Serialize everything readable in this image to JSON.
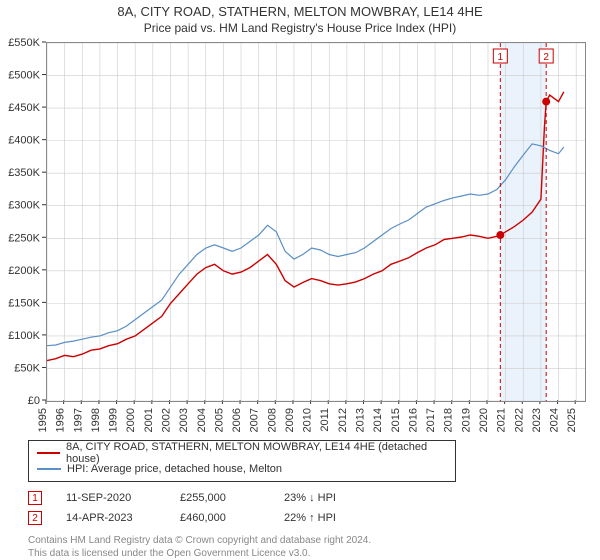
{
  "title": {
    "line1": "8A, CITY ROAD, STATHERN, MELTON MOWBRAY, LE14 4HE",
    "line2": "Price paid vs. HM Land Registry's House Price Index (HPI)"
  },
  "chart": {
    "type": "line",
    "background_color": "#ffffff",
    "border_color": "#888888",
    "grid_color": "#cccccc",
    "x_axis": {
      "min": 1995,
      "max": 2025.5,
      "tick_step": 1,
      "rotation": -90
    },
    "y_axis": {
      "min": 0,
      "max": 550000,
      "tick_step": 50000,
      "labels": [
        "£0",
        "£50K",
        "£100K",
        "£150K",
        "£200K",
        "£250K",
        "£300K",
        "£350K",
        "£400K",
        "£450K",
        "£500K",
        "£550K"
      ]
    },
    "highlight_band": {
      "x_start": 2020.7,
      "x_end": 2023.3,
      "color": "#eaf2fb"
    },
    "markers": [
      {
        "id": "1",
        "x": 2020.7,
        "y": 255000,
        "color": "#cc0000",
        "line_color": "#cc0000",
        "dash": "4,3"
      },
      {
        "id": "2",
        "x": 2023.3,
        "y": 460000,
        "color": "#cc0000",
        "line_color": "#cc0000",
        "dash": "4,3"
      }
    ],
    "series": [
      {
        "name": "property",
        "color": "#cc0000",
        "stroke_width": 1.4,
        "data": [
          [
            1995,
            62000
          ],
          [
            1995.5,
            65000
          ],
          [
            1996,
            70000
          ],
          [
            1996.5,
            68000
          ],
          [
            1997,
            72000
          ],
          [
            1997.5,
            78000
          ],
          [
            1998,
            80000
          ],
          [
            1998.5,
            85000
          ],
          [
            1999,
            88000
          ],
          [
            1999.5,
            95000
          ],
          [
            2000,
            100000
          ],
          [
            2000.5,
            110000
          ],
          [
            2001,
            120000
          ],
          [
            2001.5,
            130000
          ],
          [
            2002,
            150000
          ],
          [
            2002.5,
            165000
          ],
          [
            2003,
            180000
          ],
          [
            2003.5,
            195000
          ],
          [
            2004,
            205000
          ],
          [
            2004.5,
            210000
          ],
          [
            2005,
            200000
          ],
          [
            2005.5,
            195000
          ],
          [
            2006,
            198000
          ],
          [
            2006.5,
            205000
          ],
          [
            2007,
            215000
          ],
          [
            2007.5,
            225000
          ],
          [
            2008,
            210000
          ],
          [
            2008.5,
            185000
          ],
          [
            2009,
            175000
          ],
          [
            2009.5,
            182000
          ],
          [
            2010,
            188000
          ],
          [
            2010.5,
            185000
          ],
          [
            2011,
            180000
          ],
          [
            2011.5,
            178000
          ],
          [
            2012,
            180000
          ],
          [
            2012.5,
            183000
          ],
          [
            2013,
            188000
          ],
          [
            2013.5,
            195000
          ],
          [
            2014,
            200000
          ],
          [
            2014.5,
            210000
          ],
          [
            2015,
            215000
          ],
          [
            2015.5,
            220000
          ],
          [
            2016,
            228000
          ],
          [
            2016.5,
            235000
          ],
          [
            2017,
            240000
          ],
          [
            2017.5,
            248000
          ],
          [
            2018,
            250000
          ],
          [
            2018.5,
            252000
          ],
          [
            2019,
            255000
          ],
          [
            2019.5,
            253000
          ],
          [
            2020,
            250000
          ],
          [
            2020.5,
            253000
          ],
          [
            2020.7,
            255000
          ],
          [
            2021,
            260000
          ],
          [
            2021.5,
            268000
          ],
          [
            2022,
            278000
          ],
          [
            2022.5,
            290000
          ],
          [
            2023,
            310000
          ],
          [
            2023.2,
            420000
          ],
          [
            2023.3,
            460000
          ],
          [
            2023.5,
            470000
          ],
          [
            2024,
            460000
          ],
          [
            2024.3,
            475000
          ]
        ]
      },
      {
        "name": "hpi",
        "color": "#5a8fc7",
        "stroke_width": 1.2,
        "data": [
          [
            1995,
            85000
          ],
          [
            1995.5,
            86000
          ],
          [
            1996,
            90000
          ],
          [
            1996.5,
            92000
          ],
          [
            1997,
            95000
          ],
          [
            1997.5,
            98000
          ],
          [
            1998,
            100000
          ],
          [
            1998.5,
            105000
          ],
          [
            1999,
            108000
          ],
          [
            1999.5,
            115000
          ],
          [
            2000,
            125000
          ],
          [
            2000.5,
            135000
          ],
          [
            2001,
            145000
          ],
          [
            2001.5,
            155000
          ],
          [
            2002,
            175000
          ],
          [
            2002.5,
            195000
          ],
          [
            2003,
            210000
          ],
          [
            2003.5,
            225000
          ],
          [
            2004,
            235000
          ],
          [
            2004.5,
            240000
          ],
          [
            2005,
            235000
          ],
          [
            2005.5,
            230000
          ],
          [
            2006,
            235000
          ],
          [
            2006.5,
            245000
          ],
          [
            2007,
            255000
          ],
          [
            2007.5,
            270000
          ],
          [
            2008,
            260000
          ],
          [
            2008.5,
            230000
          ],
          [
            2009,
            218000
          ],
          [
            2009.5,
            225000
          ],
          [
            2010,
            235000
          ],
          [
            2010.5,
            232000
          ],
          [
            2011,
            225000
          ],
          [
            2011.5,
            222000
          ],
          [
            2012,
            225000
          ],
          [
            2012.5,
            228000
          ],
          [
            2013,
            235000
          ],
          [
            2013.5,
            245000
          ],
          [
            2014,
            255000
          ],
          [
            2014.5,
            265000
          ],
          [
            2015,
            272000
          ],
          [
            2015.5,
            278000
          ],
          [
            2016,
            288000
          ],
          [
            2016.5,
            298000
          ],
          [
            2017,
            303000
          ],
          [
            2017.5,
            308000
          ],
          [
            2018,
            312000
          ],
          [
            2018.5,
            315000
          ],
          [
            2019,
            318000
          ],
          [
            2019.5,
            316000
          ],
          [
            2020,
            318000
          ],
          [
            2020.5,
            325000
          ],
          [
            2021,
            340000
          ],
          [
            2021.5,
            360000
          ],
          [
            2022,
            378000
          ],
          [
            2022.5,
            395000
          ],
          [
            2023,
            392000
          ],
          [
            2023.5,
            385000
          ],
          [
            2024,
            380000
          ],
          [
            2024.3,
            390000
          ]
        ]
      }
    ]
  },
  "legend": {
    "rows": [
      {
        "color": "#cc0000",
        "label": "8A, CITY ROAD, STATHERN, MELTON MOWBRAY, LE14 4HE (detached house)"
      },
      {
        "color": "#5a8fc7",
        "label": "HPI: Average price, detached house, Melton"
      }
    ]
  },
  "marker_table": {
    "rows": [
      {
        "id": "1",
        "color": "#cc0000",
        "date": "11-SEP-2020",
        "price": "£255,000",
        "delta": "23% ↓ HPI"
      },
      {
        "id": "2",
        "color": "#cc0000",
        "date": "14-APR-2023",
        "price": "£460,000",
        "delta": "22% ↑ HPI"
      }
    ]
  },
  "license": {
    "line1": "Contains HM Land Registry data © Crown copyright and database right 2024.",
    "line2": "This data is licensed under the Open Government Licence v3.0."
  }
}
